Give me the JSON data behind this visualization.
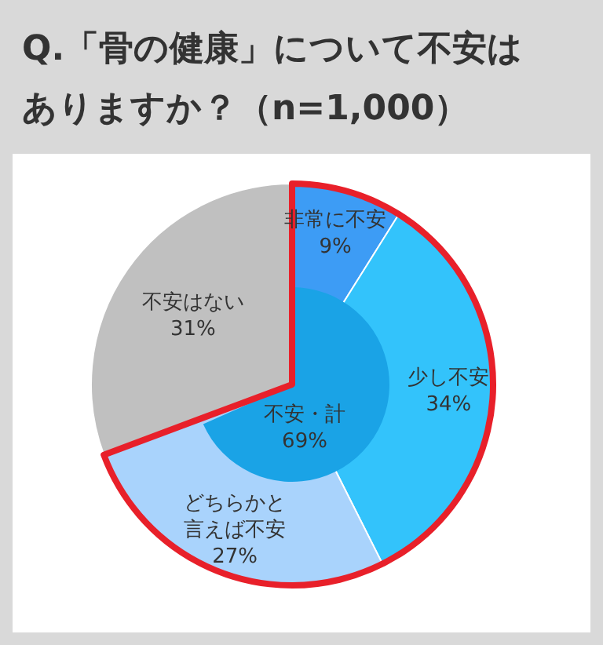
{
  "chart_data": {
    "type": "pie",
    "title": "Q.「骨の健康」について不安はありますか？（n=1,000）",
    "categories": [
      "非常に不安",
      "少し不安",
      "どちらかと言えば不安",
      "不安はない"
    ],
    "series": [
      {
        "values": [
          9,
          34,
          27,
          31
        ],
        "colors": [
          "#3d9cf5",
          "#33c3fb",
          "#a9d3fc",
          "#c0c0c0"
        ],
        "value_labels": [
          "9%",
          "34%",
          "27%",
          "31%"
        ]
      },
      {
        "name": "不安・計",
        "values": [
          69,
          null,
          null,
          null
        ],
        "colors": [
          "#1aa3e6",
          null,
          null,
          null
        ],
        "value_labels": [
          "69%",
          null,
          null,
          null
        ]
      }
    ]
  }
}
